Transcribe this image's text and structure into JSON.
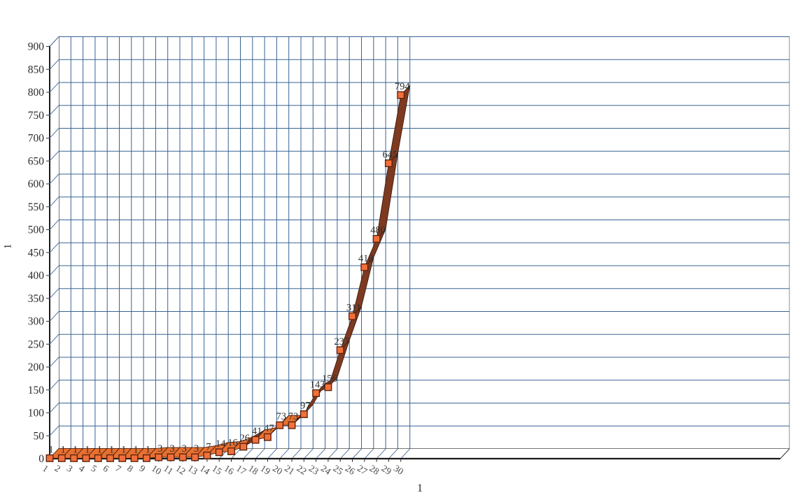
{
  "chart_data": {
    "type": "line",
    "style": "3d-ribbon-line-excel",
    "title": "",
    "xlabel": "1",
    "ylabel": "1",
    "x": [
      1,
      2,
      3,
      4,
      5,
      6,
      7,
      8,
      9,
      10,
      11,
      12,
      13,
      14,
      15,
      16,
      17,
      18,
      19,
      20,
      21,
      22,
      23,
      24,
      25,
      26,
      27,
      28,
      29,
      30
    ],
    "values": [
      1,
      1,
      1,
      1,
      1,
      1,
      1,
      1,
      1,
      3,
      3,
      3,
      3,
      7,
      14,
      16,
      26,
      41,
      47,
      73,
      73,
      97,
      143,
      156,
      237,
      311,
      418,
      480,
      645,
      794
    ],
    "point_labels": [
      "1",
      "1",
      "1",
      "1",
      "1",
      "1",
      "1",
      "1",
      "1",
      "3",
      "3",
      "3",
      "3",
      "7",
      "14",
      "16",
      "26",
      "41",
      "47",
      "73",
      "73",
      "97",
      "143",
      "156",
      "237",
      "311",
      "418",
      "480",
      "645",
      "794"
    ],
    "x_ticks": [
      "1",
      "2",
      "3",
      "4",
      "5",
      "6",
      "7",
      "8",
      "9",
      "10",
      "11",
      "12",
      "13",
      "14",
      "15",
      "16",
      "17",
      "18",
      "19",
      "20",
      "21",
      "22",
      "23",
      "24",
      "25",
      "26",
      "27",
      "28",
      "29",
      "30"
    ],
    "y_ticks": [
      "0",
      "50",
      "100",
      "150",
      "200",
      "250",
      "300",
      "350",
      "400",
      "450",
      "500",
      "550",
      "600",
      "650",
      "700",
      "750",
      "800",
      "850",
      "900"
    ],
    "ylim": [
      0,
      900
    ],
    "ytick_step": 50,
    "grid": true,
    "legend_position": "none"
  },
  "colors": {
    "background": "#ffffff",
    "gridline_blue": "#386394",
    "connector_blue": "#5577a5",
    "wall_border_gray": "#8f8f8f",
    "wall_bottom_edge": "#4a4a4a",
    "axis_black": "#1a1a1a",
    "ribbon_steep_brown": "#7d3a20",
    "ribbon_flat_orange": "#e8702f",
    "ribbon_edge_dark": "#38160a",
    "marker_orange": "#f3703a",
    "marker_border": "#5a2410",
    "y_tick_label": "#2b2b2b",
    "x_tick_label": "#4b4b4b",
    "data_label": "#303030"
  }
}
